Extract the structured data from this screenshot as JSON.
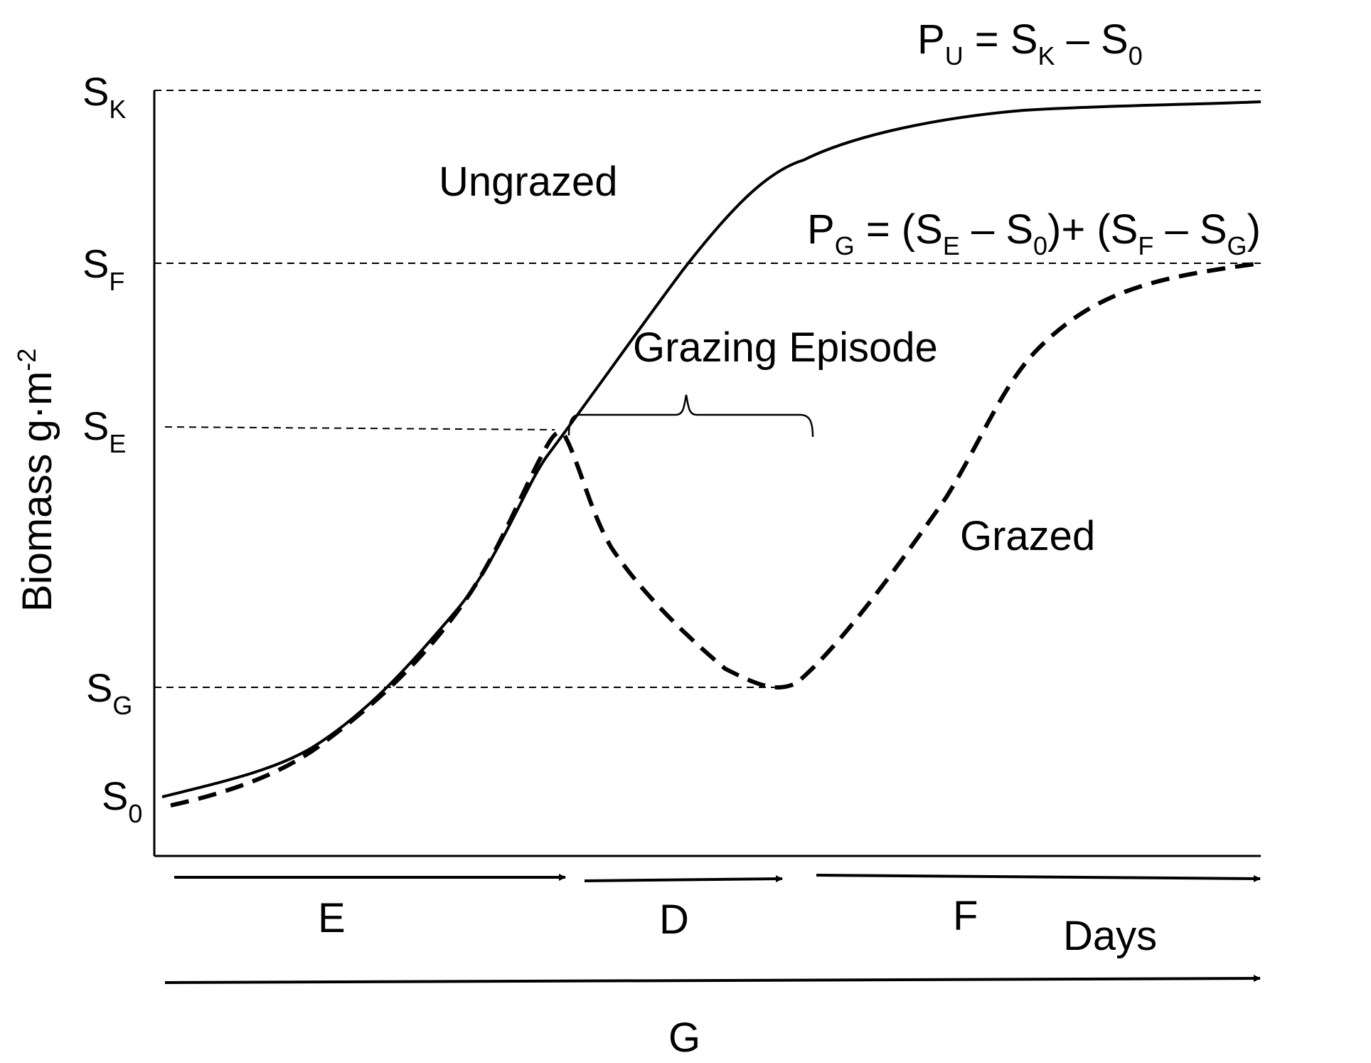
{
  "axes": {
    "y_label": "Biomass g",
    "y_label_unit": "·m",
    "y_label_exp": "-2",
    "x_label": "Days"
  },
  "y_levels": {
    "sk": {
      "main": "S",
      "sub": "K"
    },
    "sf": {
      "main": "S",
      "sub": "F"
    },
    "se": {
      "main": "S",
      "sub": "E"
    },
    "sg": {
      "main": "S",
      "sub": "G"
    },
    "s0": {
      "main": "S",
      "sub": "0"
    }
  },
  "curves": {
    "ungrazed": "Ungrazed",
    "grazed": "Grazed"
  },
  "annotations": {
    "grazing_episode": "Grazing Episode"
  },
  "formulas": {
    "pu": {
      "p": "P",
      "p_sub": "U",
      "eq": " = ",
      "s1": "S",
      "s1_sub": "K",
      "minus": " – ",
      "s2": "S",
      "s2_sub": "0"
    },
    "pg": {
      "p": "P",
      "p_sub": "G",
      "eq": " = (",
      "a": "S",
      "a_sub": "E",
      "m1": " – ",
      "b": "S",
      "b_sub": "0",
      "mid": ")+ (",
      "c": "S",
      "c_sub": "F",
      "m2": " – ",
      "d": "S",
      "d_sub": "G",
      "close": ")"
    }
  },
  "periods": {
    "e": "E",
    "d": "D",
    "f": "F",
    "g": "G"
  }
}
